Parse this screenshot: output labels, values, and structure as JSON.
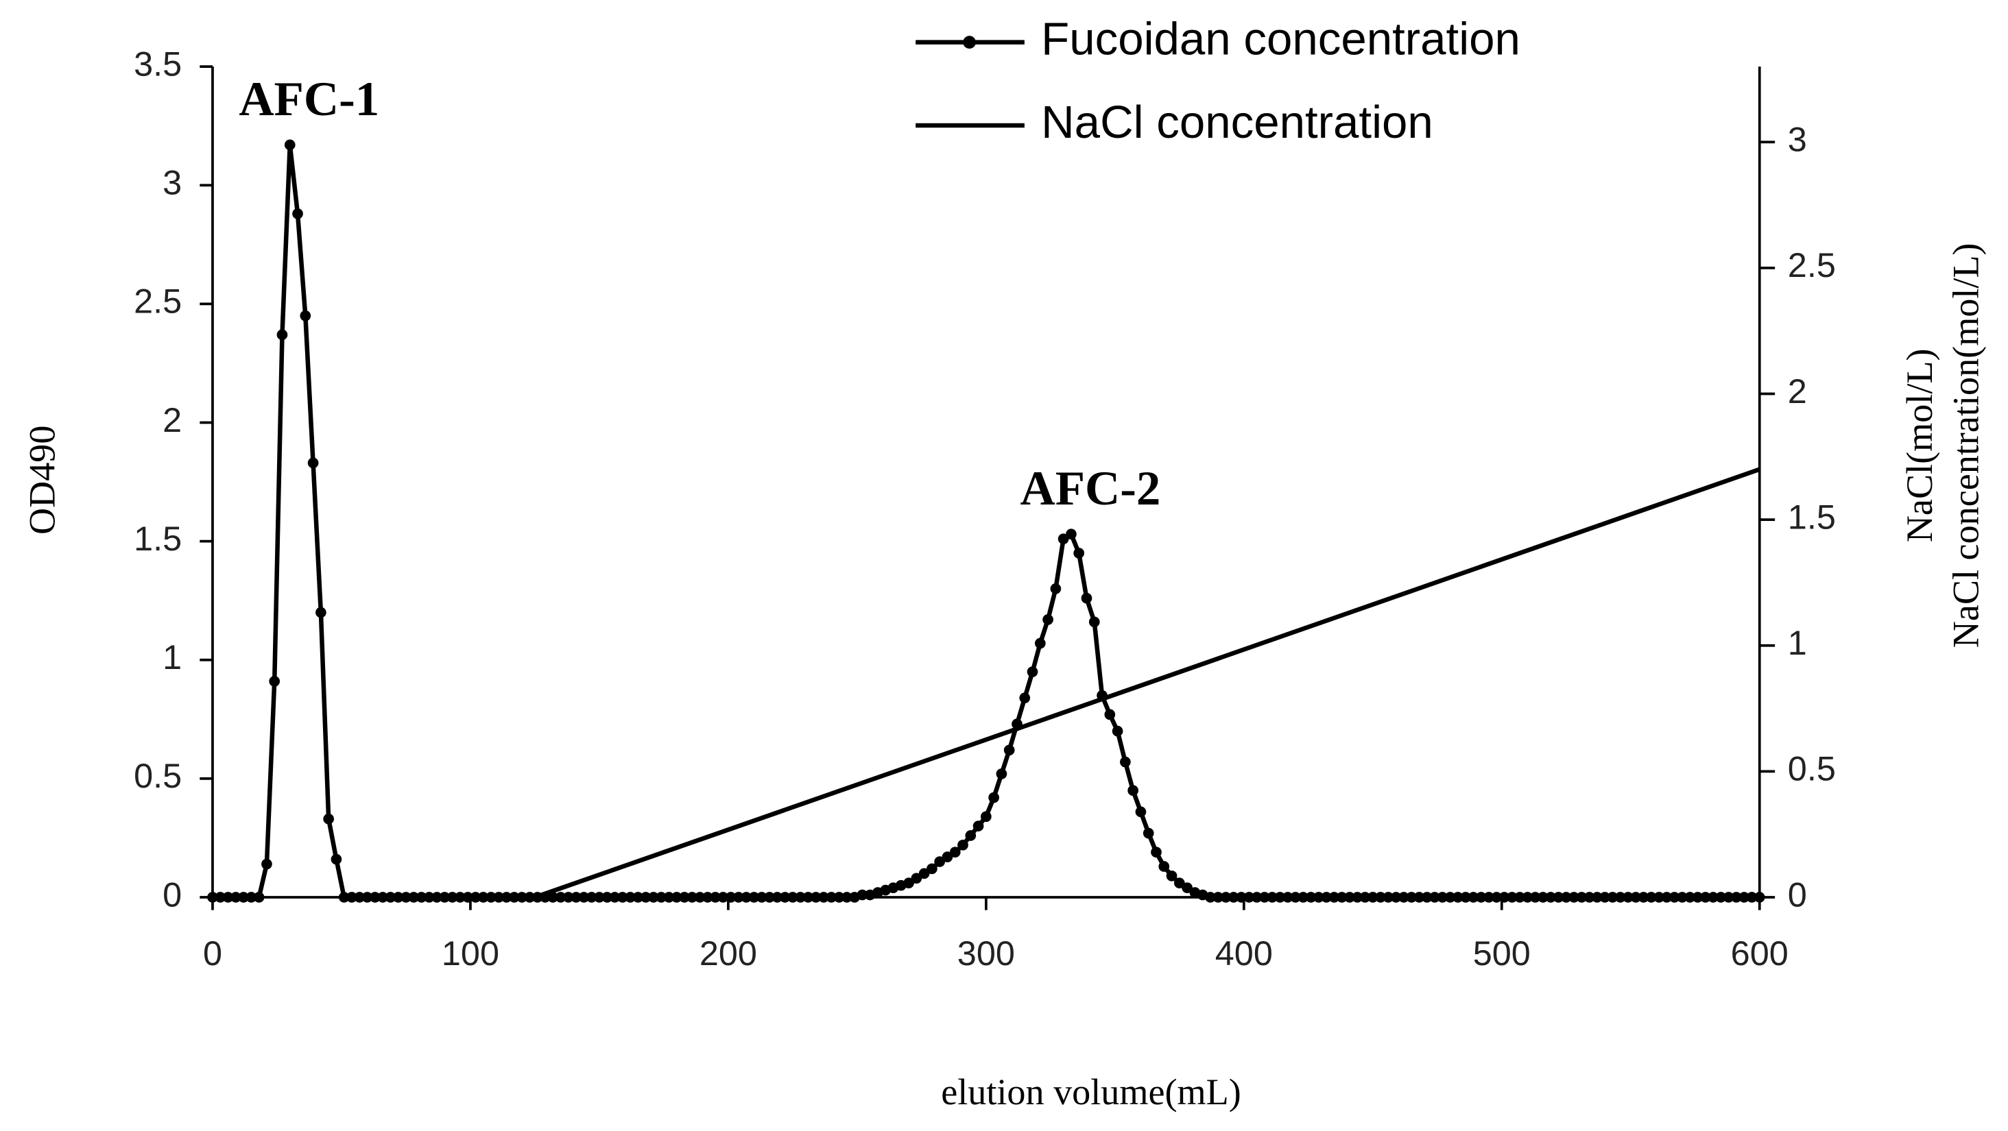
{
  "chart_data": {
    "type": "line",
    "xlabel": "elution volume(mL)",
    "ylabel": "OD490",
    "y2label": [
      "NaCl(mol/L)",
      "NaCl concentration(mol/L)"
    ],
    "annotations": [
      {
        "text": "AFC-1",
        "x": 30,
        "y": 3.17
      },
      {
        "text": "AFC-2",
        "x": 333,
        "y": 1.53
      }
    ],
    "xlim": [
      0,
      600
    ],
    "xticks": [
      0,
      100,
      200,
      300,
      400,
      500,
      600
    ],
    "ylim": [
      0,
      3.5
    ],
    "yticks": [
      0,
      0.5,
      1,
      1.5,
      2,
      2.5,
      3,
      3.5
    ],
    "y2lim": [
      0,
      3.3
    ],
    "y2ticks": [
      0,
      0.5,
      1,
      1.5,
      2,
      2.5,
      3
    ],
    "grid": false,
    "legend": "top",
    "series": [
      {
        "name": "Fucoidan concentration",
        "color": "#000000",
        "markers": true,
        "x": [
          0,
          3,
          6,
          9,
          12,
          15,
          18,
          21,
          24,
          27,
          30,
          33,
          36,
          39,
          42,
          45,
          48,
          51,
          54,
          57,
          60,
          63,
          66,
          69,
          72,
          75,
          78,
          81,
          84,
          87,
          90,
          93,
          96,
          99,
          102,
          105,
          108,
          111,
          114,
          117,
          120,
          123,
          126,
          129,
          132,
          135,
          138,
          141,
          144,
          147,
          150,
          153,
          156,
          159,
          162,
          165,
          168,
          171,
          174,
          177,
          180,
          183,
          186,
          189,
          192,
          195,
          198,
          201,
          204,
          207,
          210,
          213,
          216,
          219,
          222,
          225,
          228,
          231,
          234,
          237,
          240,
          243,
          246,
          249,
          252,
          255,
          258,
          261,
          264,
          267,
          270,
          273,
          276,
          279,
          282,
          285,
          288,
          291,
          294,
          297,
          300,
          303,
          306,
          309,
          312,
          315,
          318,
          321,
          324,
          327,
          330,
          333,
          336,
          339,
          342,
          345,
          348,
          351,
          354,
          357,
          360,
          363,
          366,
          369,
          372,
          375,
          378,
          381,
          384,
          387,
          390,
          393,
          396,
          399,
          402,
          405,
          408,
          411,
          414,
          417,
          420,
          423,
          426,
          429,
          432,
          435,
          438,
          441,
          444,
          447,
          450,
          453,
          456,
          459,
          462,
          465,
          468,
          471,
          474,
          477,
          480,
          483,
          486,
          489,
          492,
          495,
          498,
          501,
          504,
          507,
          510,
          513,
          516,
          519,
          522,
          525,
          528,
          531,
          534,
          537,
          540,
          543,
          546,
          549,
          552,
          555,
          558,
          561,
          564,
          567,
          570,
          573,
          576,
          579,
          582,
          585,
          588,
          591,
          594,
          597,
          600
        ],
        "values": [
          0,
          0,
          0,
          0,
          0,
          0,
          0,
          0.14,
          0.91,
          2.37,
          3.17,
          2.88,
          2.45,
          1.83,
          1.2,
          0.33,
          0.16,
          0,
          0,
          0,
          0,
          0,
          0,
          0,
          0,
          0,
          0,
          0,
          0,
          0,
          0,
          0,
          0,
          0,
          0,
          0,
          0,
          0,
          0,
          0,
          0,
          0,
          0,
          0,
          0,
          0,
          0,
          0,
          0,
          0,
          0,
          0,
          0,
          0,
          0,
          0,
          0,
          0,
          0,
          0,
          0,
          0,
          0,
          0,
          0,
          0,
          0,
          0,
          0,
          0,
          0,
          0,
          0,
          0,
          0,
          0,
          0,
          0,
          0,
          0,
          0,
          0,
          0,
          0,
          0.01,
          0.01,
          0.02,
          0.03,
          0.04,
          0.05,
          0.06,
          0.08,
          0.1,
          0.12,
          0.15,
          0.17,
          0.19,
          0.22,
          0.26,
          0.3,
          0.34,
          0.42,
          0.52,
          0.62,
          0.73,
          0.84,
          0.95,
          1.07,
          1.17,
          1.3,
          1.51,
          1.53,
          1.45,
          1.26,
          1.16,
          0.85,
          0.77,
          0.7,
          0.57,
          0.45,
          0.36,
          0.27,
          0.19,
          0.13,
          0.09,
          0.06,
          0.04,
          0.02,
          0.01,
          0,
          0,
          0,
          0,
          0,
          0,
          0,
          0,
          0,
          0,
          0,
          0,
          0,
          0,
          0,
          0,
          0,
          0,
          0,
          0,
          0,
          0,
          0,
          0,
          0,
          0,
          0,
          0,
          0,
          0,
          0,
          0,
          0,
          0,
          0,
          0,
          0,
          0,
          0,
          0,
          0,
          0,
          0,
          0,
          0,
          0,
          0,
          0,
          0,
          0,
          0,
          0,
          0,
          0,
          0,
          0,
          0,
          0,
          0,
          0,
          0,
          0,
          0,
          0,
          0,
          0,
          0,
          0,
          0,
          0,
          0,
          0
        ]
      },
      {
        "name": "NaCl concentration",
        "color": "#000000",
        "markers": false,
        "axis": "y2",
        "x": [
          125,
          600
        ],
        "values": [
          0,
          1.7
        ]
      }
    ]
  }
}
